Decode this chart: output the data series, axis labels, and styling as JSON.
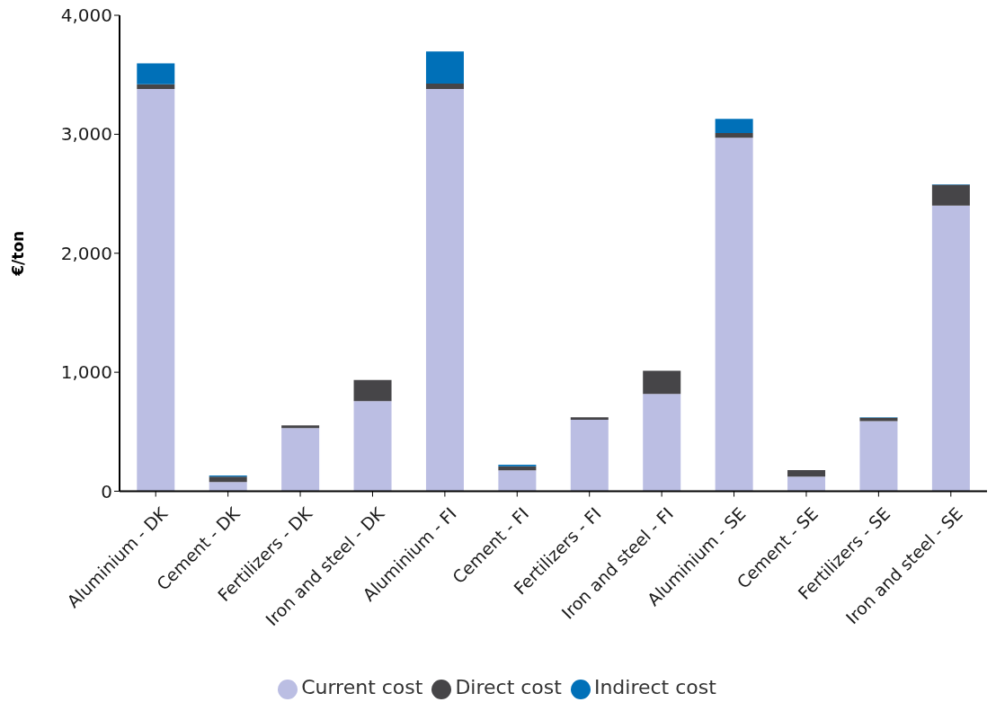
{
  "chart_data": {
    "type": "bar",
    "stacked": true,
    "ylabel": "€/ton",
    "categories": [
      "Aluminium - DK",
      "Cement - DK",
      "Fertilizers - DK",
      "Iron and steel - DK",
      "Aluminium - FI",
      "Cement - FI",
      "Fertilizers - FI",
      "Iron and steel - FI",
      "Aluminium - SE",
      "Cement - SE",
      "Fertilizers - SE",
      "Iron and steel - SE"
    ],
    "series": [
      {
        "name": "Current cost",
        "color": "#bbbee3",
        "values": [
          3380,
          78,
          530,
          757,
          3380,
          175,
          600,
          818,
          2970,
          122,
          590,
          2400
        ]
      },
      {
        "name": "Direct cost",
        "color": "#464548",
        "values": [
          40,
          45,
          23,
          177,
          45,
          35,
          21,
          195,
          40,
          55,
          28,
          176
        ]
      },
      {
        "name": "Indirect cost",
        "color": "#0070b8",
        "values": [
          175,
          10,
          null,
          null,
          270,
          12,
          null,
          null,
          120,
          null,
          3,
          3
        ]
      }
    ],
    "ylim": [
      0,
      4000
    ],
    "yticks": [
      0,
      {
        "value": 1000,
        "label": "1,000"
      },
      {
        "value": 2000,
        "label": "2,000"
      },
      {
        "value": 3000,
        "label": "3,000"
      },
      {
        "value": 4000,
        "label": "4,000"
      }
    ],
    "grid": false,
    "legend": "bottom"
  }
}
